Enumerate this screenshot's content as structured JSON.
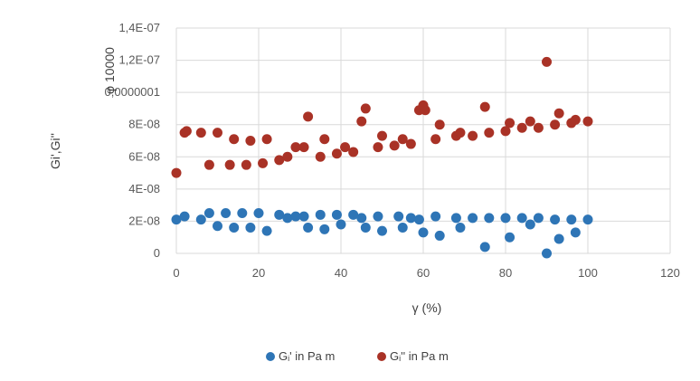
{
  "chart_data": {
    "type": "scatter",
    "title": "",
    "xlabel": "γ (%)",
    "ylabel": "Gi',Gi''",
    "xlim": [
      0,
      120
    ],
    "ylim": [
      0,
      1.4e-07
    ],
    "x_ticks": [
      "0",
      "20",
      "40",
      "60",
      "80",
      "100",
      "120"
    ],
    "y_ticks": [
      "0",
      "2E-08",
      "4E-08",
      "6E-08",
      "8E-08",
      "0,0000001",
      "1,2E-07",
      "1,4E-07"
    ],
    "overlay_label": "φ 10000",
    "grid": true,
    "legend_position": "bottom",
    "colors": {
      "series1": "#2E75B6",
      "series2": "#A93226",
      "grid": "#D9D9D9",
      "tick_text": "#595959"
    },
    "series": [
      {
        "name": "Gᵢ' in Pa m",
        "points": [
          [
            0,
            2.1e-08
          ],
          [
            2,
            2.3e-08
          ],
          [
            6,
            2.1e-08
          ],
          [
            8,
            2.5e-08
          ],
          [
            10,
            1.7e-08
          ],
          [
            12,
            2.5e-08
          ],
          [
            14,
            1.6e-08
          ],
          [
            16,
            2.5e-08
          ],
          [
            18,
            1.6e-08
          ],
          [
            20,
            2.5e-08
          ],
          [
            22,
            1.4e-08
          ],
          [
            25,
            2.4e-08
          ],
          [
            27,
            2.2e-08
          ],
          [
            29,
            2.3e-08
          ],
          [
            31,
            2.3e-08
          ],
          [
            32,
            1.6e-08
          ],
          [
            35,
            2.4e-08
          ],
          [
            36,
            1.5e-08
          ],
          [
            39,
            2.4e-08
          ],
          [
            40,
            1.8e-08
          ],
          [
            43,
            2.4e-08
          ],
          [
            45,
            2.2e-08
          ],
          [
            46,
            1.6e-08
          ],
          [
            49,
            2.3e-08
          ],
          [
            50,
            1.4e-08
          ],
          [
            54,
            2.3e-08
          ],
          [
            55,
            1.6e-08
          ],
          [
            57,
            2.2e-08
          ],
          [
            59,
            2.1e-08
          ],
          [
            60,
            1.3e-08
          ],
          [
            63,
            2.3e-08
          ],
          [
            64,
            1.1e-08
          ],
          [
            68,
            2.2e-08
          ],
          [
            69,
            1.6e-08
          ],
          [
            72,
            2.2e-08
          ],
          [
            75,
            4e-09
          ],
          [
            76,
            2.2e-08
          ],
          [
            80,
            2.2e-08
          ],
          [
            81,
            1e-08
          ],
          [
            84,
            2.2e-08
          ],
          [
            86,
            1.8e-08
          ],
          [
            88,
            2.2e-08
          ],
          [
            90,
            0
          ],
          [
            92,
            2.1e-08
          ],
          [
            93,
            9e-09
          ],
          [
            96,
            2.1e-08
          ],
          [
            97,
            1.3e-08
          ],
          [
            100,
            2.1e-08
          ]
        ]
      },
      {
        "name": "Gᵢ'' in Pa m",
        "points": [
          [
            0,
            5e-08
          ],
          [
            2,
            7.5e-08
          ],
          [
            2.5,
            7.6e-08
          ],
          [
            6,
            7.5e-08
          ],
          [
            8,
            5.5e-08
          ],
          [
            10,
            7.5e-08
          ],
          [
            13,
            5.5e-08
          ],
          [
            14,
            7.1e-08
          ],
          [
            17,
            5.5e-08
          ],
          [
            18,
            7e-08
          ],
          [
            21,
            5.6e-08
          ],
          [
            22,
            7.1e-08
          ],
          [
            25,
            5.8e-08
          ],
          [
            27,
            6e-08
          ],
          [
            29,
            6.6e-08
          ],
          [
            31,
            6.6e-08
          ],
          [
            32,
            8.5e-08
          ],
          [
            35,
            6e-08
          ],
          [
            36,
            7.1e-08
          ],
          [
            39,
            6.2e-08
          ],
          [
            41,
            6.6e-08
          ],
          [
            43,
            6.3e-08
          ],
          [
            45,
            8.2e-08
          ],
          [
            46,
            9e-08
          ],
          [
            49,
            6.6e-08
          ],
          [
            50,
            7.3e-08
          ],
          [
            53,
            6.7e-08
          ],
          [
            55,
            7.1e-08
          ],
          [
            57,
            6.8e-08
          ],
          [
            59,
            8.9e-08
          ],
          [
            60,
            9.2e-08
          ],
          [
            60.5,
            8.9e-08
          ],
          [
            63,
            7.1e-08
          ],
          [
            64,
            8e-08
          ],
          [
            68,
            7.3e-08
          ],
          [
            69,
            7.5e-08
          ],
          [
            72,
            7.3e-08
          ],
          [
            75,
            9.1e-08
          ],
          [
            76,
            7.5e-08
          ],
          [
            80,
            7.6e-08
          ],
          [
            81,
            8.1e-08
          ],
          [
            84,
            7.8e-08
          ],
          [
            86,
            8.2e-08
          ],
          [
            88,
            7.8e-08
          ],
          [
            90,
            1.19e-07
          ],
          [
            92,
            8e-08
          ],
          [
            93,
            8.7e-08
          ],
          [
            96,
            8.1e-08
          ],
          [
            97,
            8.3e-08
          ],
          [
            100,
            8.2e-08
          ]
        ]
      }
    ]
  }
}
